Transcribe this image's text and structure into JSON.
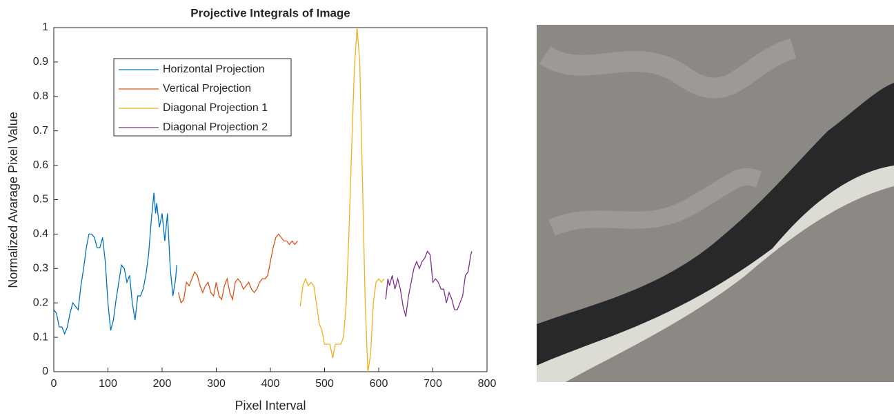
{
  "chart_data": {
    "type": "line",
    "title": "Projective Integrals of Image",
    "x_label": "Pixel Interval",
    "y_label": "Normalized Avarage Pixel Value",
    "xlim": [
      0,
      800
    ],
    "ylim": [
      0,
      1
    ],
    "xticks": [
      0,
      100,
      200,
      300,
      400,
      500,
      600,
      700,
      800
    ],
    "yticks": [
      0,
      0.1,
      0.2,
      0.3,
      0.4,
      0.5,
      0.6,
      0.7,
      0.8,
      0.9,
      1
    ],
    "grid": false,
    "legend": "upper-left",
    "series": [
      {
        "name": "Horizontal Projection",
        "color": "#0072bd",
        "x": [
          0,
          5,
          10,
          15,
          20,
          25,
          30,
          35,
          40,
          45,
          50,
          55,
          60,
          65,
          70,
          75,
          80,
          85,
          90,
          95,
          100,
          105,
          110,
          115,
          120,
          125,
          130,
          135,
          140,
          145,
          150,
          155,
          160,
          165,
          170,
          175,
          180,
          185,
          188,
          190,
          195,
          200,
          205,
          210,
          215,
          220,
          225,
          227
        ],
        "values": [
          0.18,
          0.17,
          0.13,
          0.13,
          0.11,
          0.13,
          0.17,
          0.2,
          0.19,
          0.18,
          0.25,
          0.3,
          0.36,
          0.4,
          0.4,
          0.39,
          0.36,
          0.36,
          0.39,
          0.32,
          0.2,
          0.12,
          0.15,
          0.21,
          0.26,
          0.31,
          0.3,
          0.26,
          0.28,
          0.2,
          0.15,
          0.22,
          0.22,
          0.24,
          0.28,
          0.34,
          0.44,
          0.52,
          0.46,
          0.49,
          0.42,
          0.46,
          0.38,
          0.46,
          0.3,
          0.22,
          0.27,
          0.31
        ]
      },
      {
        "name": "Vertical Projection",
        "color": "#d95319",
        "x": [
          230,
          235,
          240,
          245,
          250,
          255,
          260,
          265,
          270,
          275,
          280,
          285,
          290,
          295,
          300,
          305,
          310,
          315,
          320,
          325,
          330,
          335,
          340,
          345,
          350,
          355,
          360,
          365,
          370,
          375,
          380,
          385,
          390,
          395,
          400,
          405,
          410,
          415,
          420,
          425,
          430,
          435,
          440,
          445,
          450
        ],
        "values": [
          0.23,
          0.2,
          0.21,
          0.26,
          0.25,
          0.27,
          0.29,
          0.28,
          0.25,
          0.23,
          0.25,
          0.26,
          0.23,
          0.22,
          0.26,
          0.22,
          0.21,
          0.25,
          0.27,
          0.23,
          0.21,
          0.26,
          0.27,
          0.26,
          0.24,
          0.25,
          0.26,
          0.24,
          0.23,
          0.24,
          0.26,
          0.27,
          0.27,
          0.28,
          0.32,
          0.36,
          0.39,
          0.4,
          0.39,
          0.38,
          0.38,
          0.37,
          0.38,
          0.37,
          0.38
        ]
      },
      {
        "name": "Diagonal Projection 1",
        "color": "#edb120",
        "x": [
          455,
          460,
          465,
          470,
          475,
          480,
          485,
          490,
          495,
          500,
          505,
          510,
          515,
          520,
          525,
          530,
          535,
          540,
          545,
          550,
          555,
          560,
          565,
          570,
          575,
          580,
          585,
          590,
          595,
          600,
          605,
          610
        ],
        "values": [
          0.19,
          0.25,
          0.27,
          0.25,
          0.26,
          0.25,
          0.2,
          0.14,
          0.12,
          0.08,
          0.08,
          0.08,
          0.04,
          0.08,
          0.08,
          0.08,
          0.1,
          0.2,
          0.4,
          0.65,
          0.88,
          1.0,
          0.9,
          0.55,
          0.2,
          0.0,
          0.05,
          0.2,
          0.26,
          0.27,
          0.26,
          0.27
        ]
      },
      {
        "name": "Diagonal Projection 2",
        "color": "#7e2f8e",
        "x": [
          613,
          617,
          620,
          625,
          630,
          635,
          640,
          645,
          650,
          655,
          660,
          665,
          670,
          675,
          680,
          685,
          690,
          695,
          700,
          705,
          710,
          715,
          720,
          725,
          730,
          735,
          740,
          745,
          750,
          755,
          760,
          765,
          770,
          772
        ],
        "values": [
          0.21,
          0.27,
          0.25,
          0.28,
          0.24,
          0.27,
          0.24,
          0.19,
          0.16,
          0.22,
          0.26,
          0.3,
          0.32,
          0.3,
          0.32,
          0.33,
          0.35,
          0.34,
          0.26,
          0.27,
          0.26,
          0.24,
          0.24,
          0.2,
          0.23,
          0.21,
          0.18,
          0.18,
          0.2,
          0.22,
          0.28,
          0.29,
          0.34,
          0.35
        ]
      }
    ]
  }
}
